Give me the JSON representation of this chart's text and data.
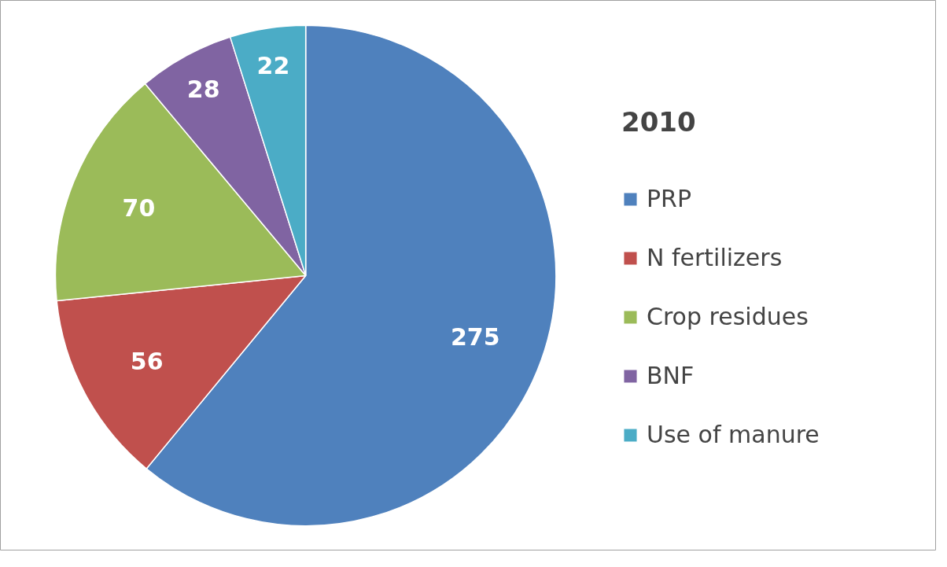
{
  "chart_data": {
    "type": "pie",
    "legend_title": "2010",
    "categories": [
      "PRP",
      "N fertilizers",
      "Crop residues",
      "BNF",
      "Use of manure"
    ],
    "values": [
      275,
      56,
      70,
      28,
      22
    ],
    "colors": [
      "#4f81bd",
      "#c0504d",
      "#9bbb59",
      "#8064a2",
      "#4bacc6"
    ],
    "data_labels": true,
    "legend": "right"
  }
}
